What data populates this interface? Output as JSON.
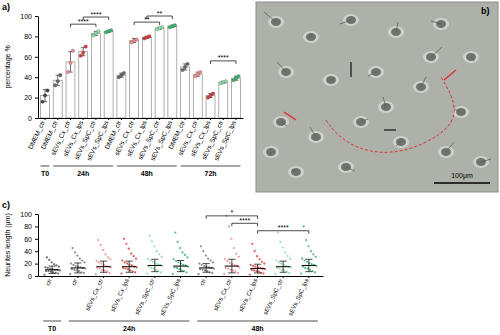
{
  "chart_data": [
    {
      "type": "bar",
      "title": "a)",
      "y_label": "percentage %",
      "categories": [
        "DMEM_ctr",
        "DMEM_ctr",
        "sEVs_Cx_ctr",
        "sEVs_Cx_lps",
        "sEVs_SpC_ctr",
        "sEVs_SpC_lps",
        "DMEM_ctr",
        "sEVs_Cx_ctr",
        "sEVs_Cx_lps",
        "sEVs_SpC_ctr",
        "sEVs_SpC_lps",
        "DMEM_ctr",
        "sEVs_Cx_ctr",
        "sEVs_Cx_lps",
        "sEVs_SpC_ctr",
        "sEVs_SpC_lps"
      ],
      "groups": [
        {
          "label": "T0",
          "from": 0,
          "to": 0
        },
        {
          "label": "24h",
          "from": 1,
          "to": 5
        },
        {
          "label": "48h",
          "from": 6,
          "to": 10
        },
        {
          "label": "72h",
          "from": 11,
          "to": 15
        }
      ],
      "values": [
        22,
        37,
        55,
        65,
        83,
        85,
        42,
        76,
        79,
        88,
        90,
        50,
        43,
        22,
        35,
        39
      ],
      "error": [
        6,
        5,
        10,
        4,
        2,
        1,
        2,
        2,
        1,
        1,
        1,
        3,
        2,
        2,
        1,
        2
      ],
      "points": [
        [
          16,
          22,
          27
        ],
        [
          32,
          36,
          42
        ],
        [
          45,
          54,
          66
        ],
        [
          61,
          64,
          70
        ],
        [
          81,
          83,
          85
        ],
        [
          84,
          85,
          86
        ],
        [
          40,
          42,
          44
        ],
        [
          74,
          76,
          77
        ],
        [
          78,
          79,
          80
        ],
        [
          87,
          88,
          89
        ],
        [
          89,
          90,
          91
        ],
        [
          47,
          50,
          53
        ],
        [
          41,
          43,
          45
        ],
        [
          20,
          22,
          24
        ],
        [
          34,
          35,
          36
        ],
        [
          37,
          39,
          41
        ]
      ],
      "colors": [
        "#444444",
        "#666666",
        "#f08a8a",
        "#d83c3c",
        "#8fd9a8",
        "#3cb371",
        "#666666",
        "#f08a8a",
        "#d83c3c",
        "#8fd9a8",
        "#3cb371",
        "#666666",
        "#f08a8a",
        "#d83c3c",
        "#8fd9a8",
        "#3cb371"
      ],
      "ylim": [
        0,
        100
      ],
      "yticks": [
        0,
        20,
        40,
        60,
        80,
        100
      ],
      "annotations": [
        {
          "text": "****",
          "from": 2,
          "to": 4,
          "y": 92
        },
        {
          "text": "****",
          "from": 3,
          "to": 5,
          "y": 99
        },
        {
          "text": "**",
          "from": 7,
          "to": 9,
          "y": 94
        },
        {
          "text": "**",
          "from": 8,
          "to": 10,
          "y": 100
        },
        {
          "text": "****",
          "from": 13,
          "to": 15,
          "y": 56
        }
      ]
    },
    {
      "type": "scatter",
      "title": "c)",
      "y_label": "Neurites length (μm)",
      "categories": [
        "ctr",
        "ctr",
        "sEVs_Cx_ctr",
        "sEVs_Cx_lps",
        "sEVs_SpC_ctr",
        "sEVs_SpC_lps",
        "ctr",
        "sEVs_Cx_ctr",
        "sEVs_Cx_lps",
        "sEVs_SpC_ctr",
        "sEVs_SpC_lps"
      ],
      "groups": [
        {
          "label": "T0",
          "from": 0,
          "to": 0
        },
        {
          "label": "24h",
          "from": 1,
          "to": 5
        },
        {
          "label": "48h",
          "from": 6,
          "to": 10
        }
      ],
      "values": [
        10,
        13,
        15,
        15,
        17,
        16,
        13,
        16,
        12,
        15,
        17
      ],
      "error": [
        6,
        8,
        9,
        9,
        10,
        9,
        7,
        11,
        7,
        9,
        10
      ],
      "points": [
        [
          2,
          4,
          5,
          6,
          7,
          8,
          8,
          9,
          10,
          10,
          11,
          12,
          13,
          14,
          15,
          17,
          19,
          22,
          26,
          30
        ],
        [
          3,
          5,
          6,
          8,
          9,
          10,
          11,
          12,
          13,
          14,
          15,
          16,
          18,
          20,
          22,
          25,
          28,
          33,
          38,
          45
        ],
        [
          3,
          5,
          7,
          9,
          10,
          12,
          13,
          14,
          15,
          16,
          18,
          20,
          22,
          24,
          27,
          30,
          35,
          42,
          50,
          58
        ],
        [
          4,
          6,
          7,
          9,
          11,
          12,
          13,
          14,
          15,
          17,
          18,
          20,
          22,
          25,
          28,
          32,
          36,
          44,
          52,
          60
        ],
        [
          4,
          6,
          8,
          10,
          12,
          13,
          15,
          16,
          18,
          19,
          21,
          23,
          25,
          28,
          31,
          35,
          40,
          48,
          56,
          65
        ],
        [
          3,
          6,
          8,
          9,
          11,
          13,
          14,
          15,
          17,
          18,
          20,
          22,
          24,
          27,
          30,
          34,
          38,
          45,
          55,
          70
        ],
        [
          3,
          5,
          6,
          8,
          9,
          10,
          11,
          12,
          13,
          14,
          15,
          16,
          18,
          20,
          22,
          25,
          28,
          33,
          40,
          48
        ],
        [
          3,
          5,
          7,
          9,
          10,
          12,
          13,
          14,
          16,
          17,
          19,
          21,
          24,
          27,
          31,
          36,
          45,
          60,
          80,
          97
        ],
        [
          2,
          4,
          5,
          7,
          8,
          9,
          10,
          11,
          12,
          13,
          14,
          15,
          16,
          18,
          20,
          23,
          27,
          32,
          40,
          52
        ],
        [
          3,
          5,
          7,
          9,
          10,
          12,
          13,
          14,
          15,
          16,
          18,
          20,
          22,
          25,
          28,
          32,
          38,
          46,
          55,
          70
        ],
        [
          4,
          6,
          8,
          10,
          12,
          13,
          15,
          16,
          18,
          19,
          21,
          23,
          25,
          28,
          31,
          35,
          40,
          48,
          58,
          80
        ]
      ],
      "colors": [
        "#555555",
        "#777777",
        "#f08a8a",
        "#d83c3c",
        "#8fd9a8",
        "#3cb371",
        "#777777",
        "#f08a8a",
        "#d83c3c",
        "#8fd9a8",
        "#3cb371"
      ],
      "ylim": [
        0,
        100
      ],
      "yticks": [
        0,
        20,
        40,
        60,
        80,
        100
      ],
      "annotations": [
        {
          "text": "*",
          "from": 6,
          "to": 8,
          "y": 97
        },
        {
          "text": "****",
          "from": 7,
          "to": 8,
          "y": 85
        },
        {
          "text": "****",
          "from": 8,
          "to": 10,
          "y": 73
        }
      ]
    }
  ],
  "image": {
    "label": "b)",
    "scale_bar": "100μm"
  }
}
